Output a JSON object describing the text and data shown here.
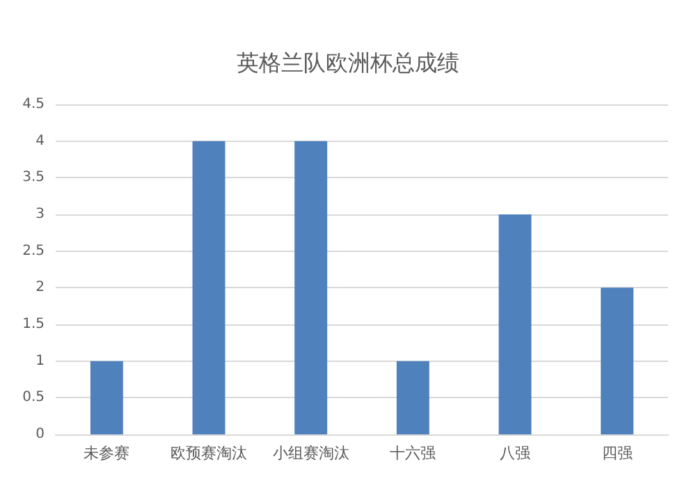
{
  "chart_data": {
    "type": "bar",
    "title": "英格兰队欧洲杯总成绩",
    "categories": [
      "未参赛",
      "欧预赛淘汰",
      "小组赛淘汰",
      "十六强",
      "八强",
      "四强"
    ],
    "values": [
      1,
      4,
      4,
      1,
      3,
      2
    ],
    "color": "#4f81bd",
    "ylim": [
      0,
      4.5
    ],
    "yticks": [
      0,
      0.5,
      1,
      1.5,
      2,
      2.5,
      3,
      3.5,
      4,
      4.5
    ],
    "grid": "y"
  }
}
